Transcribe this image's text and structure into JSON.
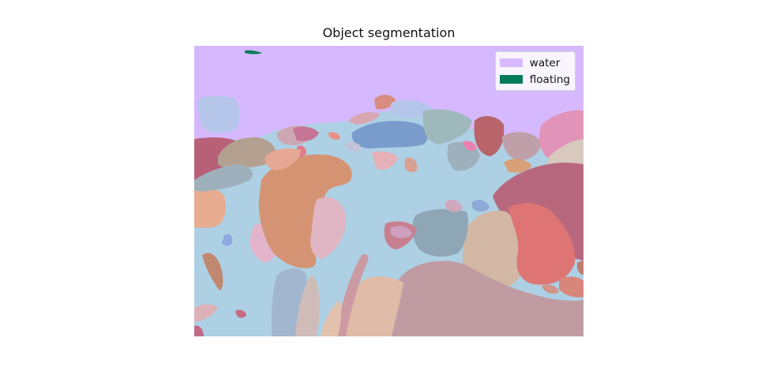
{
  "title": "Object segmentation",
  "legend": [
    {
      "label": "water",
      "color": "#d6b8ff"
    },
    {
      "label": "floating",
      "color": "#007a5a"
    }
  ],
  "colors": {
    "background": "#aed0e4",
    "sky": "#d6b8ff"
  }
}
